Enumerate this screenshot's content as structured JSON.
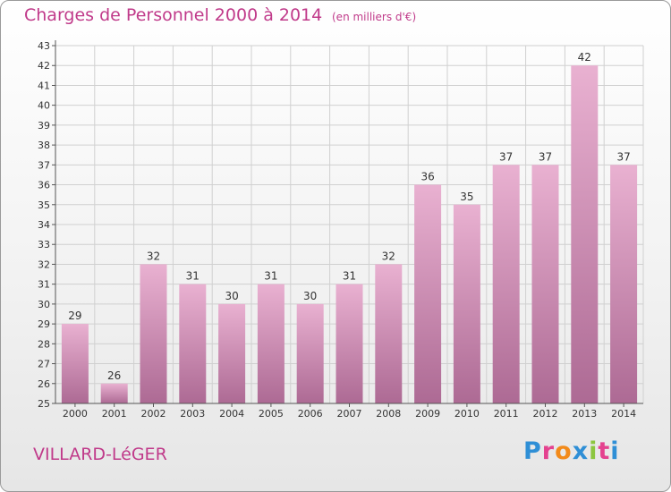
{
  "header": {
    "title": "Charges de Personnel 2000 à 2014",
    "subtitle": "(en milliers d'€)"
  },
  "footer": {
    "commune": "VILLARD-LéGER",
    "brand_letters": [
      "P",
      "r",
      "o",
      "x",
      "i",
      "t",
      "i"
    ],
    "brand_colors": [
      "#2f8fd6",
      "#e4428f",
      "#f28a1a",
      "#2f8fd6",
      "#8cc63f",
      "#e4428f",
      "#2f8fd6"
    ]
  },
  "colors": {
    "bar": "#d27fb0",
    "bar_light": "#e9b1d1",
    "grid": "#d0d0d0"
  },
  "chart_data": {
    "type": "bar",
    "title": "Charges de Personnel 2000 à 2014",
    "subtitle": "(en milliers d'€)",
    "categories": [
      "2000",
      "2001",
      "2002",
      "2003",
      "2004",
      "2005",
      "2006",
      "2007",
      "2008",
      "2009",
      "2010",
      "2011",
      "2012",
      "2013",
      "2014"
    ],
    "values": [
      29,
      26,
      32,
      31,
      30,
      31,
      30,
      31,
      32,
      36,
      35,
      37,
      37,
      42,
      37
    ],
    "ylim": [
      25,
      43
    ],
    "yticks": [
      25,
      26,
      27,
      28,
      29,
      30,
      31,
      32,
      33,
      34,
      35,
      36,
      37,
      38,
      39,
      40,
      41,
      42,
      43
    ],
    "grid": true,
    "legend": "none"
  }
}
